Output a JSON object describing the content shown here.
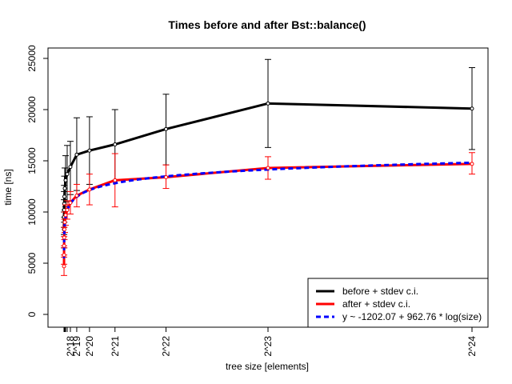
{
  "chart_data": {
    "type": "line",
    "title": "Times before and after Bst::balance()",
    "xlabel": "tree size [elements]",
    "ylabel": "time [ns]",
    "xlim": [
      0,
      16777216
    ],
    "ylim": [
      0,
      25000
    ],
    "y_ticks": [
      0,
      5000,
      10000,
      15000,
      20000,
      25000
    ],
    "x_tick_labels": [
      {
        "x": 262144,
        "label": "2^18"
      },
      {
        "x": 524288,
        "label": "2^19"
      },
      {
        "x": 1048576,
        "label": "2^20"
      },
      {
        "x": 2097152,
        "label": "2^21"
      },
      {
        "x": 4194304,
        "label": "2^22"
      },
      {
        "x": 8388608,
        "label": "2^23"
      },
      {
        "x": 16777216,
        "label": "2^24"
      }
    ],
    "small_x_ticks": [
      1024,
      2048,
      4096,
      8192,
      16384,
      32768,
      65536,
      131072
    ],
    "legend_position": "bottom-right",
    "series": [
      {
        "name": "before + stdev c.i.",
        "color": "#000000",
        "style": "solid",
        "points": [
          {
            "x": 1024,
            "y": 8300,
            "lo": 6500,
            "hi": 10000
          },
          {
            "x": 2048,
            "y": 9500,
            "lo": 7800,
            "hi": 11200
          },
          {
            "x": 4096,
            "y": 10200,
            "lo": 8500,
            "hi": 12000
          },
          {
            "x": 8192,
            "y": 10800,
            "lo": 9000,
            "hi": 12600
          },
          {
            "x": 16384,
            "y": 11500,
            "lo": 9500,
            "hi": 13500
          },
          {
            "x": 32768,
            "y": 12300,
            "lo": 10200,
            "hi": 14300
          },
          {
            "x": 65536,
            "y": 13100,
            "lo": 10500,
            "hi": 15500
          },
          {
            "x": 131072,
            "y": 13700,
            "lo": 11000,
            "hi": 16500
          },
          {
            "x": 262144,
            "y": 14400,
            "lo": 11700,
            "hi": 16900
          },
          {
            "x": 524288,
            "y": 15600,
            "lo": 12100,
            "hi": 19200
          },
          {
            "x": 1048576,
            "y": 16000,
            "lo": 12700,
            "hi": 19300
          },
          {
            "x": 2097152,
            "y": 16600,
            "lo": 13100,
            "hi": 20000
          },
          {
            "x": 4194304,
            "y": 18100,
            "lo": 14600,
            "hi": 21500
          },
          {
            "x": 8388608,
            "y": 20600,
            "lo": 16300,
            "hi": 24900
          },
          {
            "x": 16777216,
            "y": 20100,
            "lo": 16100,
            "hi": 24100
          }
        ]
      },
      {
        "name": "after + stdev c.i.",
        "color": "#ff0000",
        "style": "solid",
        "points": [
          {
            "x": 1024,
            "y": 4700,
            "lo": 3800,
            "hi": 5600
          },
          {
            "x": 2048,
            "y": 5800,
            "lo": 4900,
            "hi": 6700
          },
          {
            "x": 4096,
            "y": 6700,
            "lo": 5800,
            "hi": 7600
          },
          {
            "x": 8192,
            "y": 7500,
            "lo": 6500,
            "hi": 8500
          },
          {
            "x": 16384,
            "y": 8300,
            "lo": 7300,
            "hi": 9300
          },
          {
            "x": 32768,
            "y": 9000,
            "lo": 8000,
            "hi": 10000
          },
          {
            "x": 65536,
            "y": 9700,
            "lo": 8700,
            "hi": 10700
          },
          {
            "x": 131072,
            "y": 10200,
            "lo": 9300,
            "hi": 11100
          },
          {
            "x": 262144,
            "y": 10900,
            "lo": 9800,
            "hi": 12000
          },
          {
            "x": 524288,
            "y": 11600,
            "lo": 10500,
            "hi": 12700
          },
          {
            "x": 1048576,
            "y": 12200,
            "lo": 10700,
            "hi": 13700
          },
          {
            "x": 2097152,
            "y": 13100,
            "lo": 10500,
            "hi": 15700
          },
          {
            "x": 4194304,
            "y": 13400,
            "lo": 12300,
            "hi": 14600
          },
          {
            "x": 8388608,
            "y": 14300,
            "lo": 13200,
            "hi": 15400
          },
          {
            "x": 16777216,
            "y": 14700,
            "lo": 13700,
            "hi": 15800
          }
        ]
      },
      {
        "name": "y ~ -1202.07 + 962.76 * log(size)",
        "color": "#0000ff",
        "style": "dashed",
        "fit": {
          "a": -1202.07,
          "b": 962.76
        }
      }
    ]
  }
}
